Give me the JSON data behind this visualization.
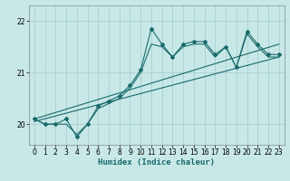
{
  "background_color": "#c8e8e8",
  "grid_color": "#a8d0d0",
  "line_color": "#1a6b6b",
  "xlabel": "Humidex (Indice chaleur)",
  "ylim": [
    19.6,
    22.3
  ],
  "xlim": [
    -0.5,
    23.5
  ],
  "yticks": [
    20,
    21,
    22
  ],
  "xticks": [
    0,
    1,
    2,
    3,
    4,
    5,
    6,
    7,
    8,
    9,
    10,
    11,
    12,
    13,
    14,
    15,
    16,
    17,
    18,
    19,
    20,
    21,
    22,
    23
  ],
  "line1_x": [
    0,
    1,
    2,
    3,
    4,
    5,
    6,
    7,
    8,
    9,
    10,
    11,
    12,
    13,
    14,
    15,
    16,
    17,
    18,
    19,
    20,
    21,
    22,
    23
  ],
  "line1_y": [
    20.1,
    20.0,
    20.0,
    20.1,
    19.75,
    20.0,
    20.35,
    20.45,
    20.55,
    20.75,
    21.05,
    21.85,
    21.55,
    21.3,
    21.55,
    21.6,
    21.6,
    21.35,
    21.5,
    21.1,
    21.8,
    21.55,
    21.35,
    21.35
  ],
  "line2_x": [
    0,
    1,
    2,
    3,
    4,
    5,
    6,
    7,
    8,
    9,
    10,
    11,
    12,
    13,
    14,
    15,
    16,
    17,
    18,
    19,
    20,
    21,
    22,
    23
  ],
  "line2_y": [
    20.1,
    20.0,
    20.0,
    20.0,
    19.8,
    20.0,
    20.3,
    20.4,
    20.5,
    20.7,
    21.0,
    21.55,
    21.5,
    21.3,
    21.5,
    21.55,
    21.55,
    21.3,
    21.5,
    21.1,
    21.75,
    21.5,
    21.3,
    21.3
  ],
  "trend1_x": [
    0,
    23
  ],
  "trend1_y": [
    20.05,
    21.3
  ],
  "trend2_x": [
    0,
    23
  ],
  "trend2_y": [
    20.1,
    21.55
  ]
}
